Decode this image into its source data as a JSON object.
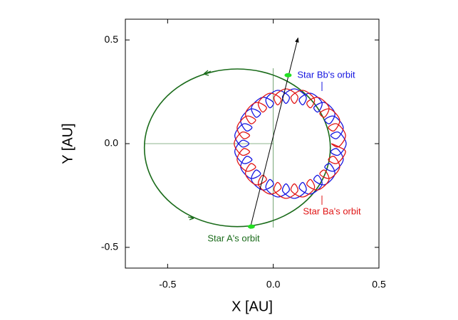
{
  "chart_data": {
    "type": "line",
    "x_label": "X [AU]",
    "y_label": "Y [AU]",
    "xlim": [
      -0.7,
      0.5
    ],
    "ylim": [
      -0.6,
      0.6
    ],
    "xticks": [
      -0.5,
      {
        "value": 0,
        "label": "0.0"
      },
      0.5
    ],
    "yticks": [
      -0.5,
      {
        "value": 0,
        "label": "0.0"
      },
      0.5
    ],
    "series": [
      {
        "name": "Star A's orbit",
        "color": "#1a6b1a",
        "x": [
          0.27,
          0.255,
          0.211,
          0.141,
          0.05,
          -0.056,
          -0.17,
          -0.284,
          -0.39,
          -0.481,
          -0.551,
          -0.595,
          -0.61,
          -0.595,
          -0.551,
          -0.481,
          -0.39,
          -0.284,
          -0.17,
          -0.056,
          0.05,
          0.141,
          0.211,
          0.255
        ],
        "y": [
          -0.02,
          0.078,
          0.17,
          0.249,
          0.309,
          0.347,
          0.36,
          0.347,
          0.309,
          0.249,
          0.17,
          0.078,
          -0.02,
          -0.118,
          -0.21,
          -0.289,
          -0.349,
          -0.387,
          -0.4,
          -0.387,
          -0.349,
          -0.289,
          -0.21,
          -0.118
        ]
      },
      {
        "name": "Star Bb's orbit",
        "color": "#1515e0",
        "x": [
          0.345,
          0.309,
          0.272,
          0.302,
          0.331,
          0.288,
          0.244,
          0.268,
          0.291,
          0.243,
          0.193,
          0.212,
          0.23,
          0.177,
          0.124,
          0.14,
          0.155,
          0.1,
          0.045,
          0.06,
          0.075,
          0.02,
          -0.034,
          -0.017,
          0.0,
          -0.052,
          -0.103,
          -0.083,
          -0.061,
          -0.108,
          -0.154,
          -0.128,
          -0.101,
          -0.142,
          -0.182,
          -0.149,
          -0.115,
          -0.149,
          -0.182,
          -0.142,
          -0.101,
          -0.128,
          -0.154,
          -0.108,
          -0.061,
          -0.083,
          -0.103,
          -0.052,
          0.0,
          -0.017,
          -0.034,
          0.02,
          0.075,
          0.06,
          0.045,
          0.1,
          0.155,
          0.14,
          0.124,
          0.177,
          0.23,
          0.212,
          0.193,
          0.243,
          0.291,
          0.268,
          0.244,
          0.288,
          0.331,
          0.302,
          0.272,
          0.309
        ],
        "y": [
          0,
          0.055,
          0.04,
          0.025,
          0.079,
          0.132,
          0.115,
          0.097,
          0.148,
          0.198,
          0.176,
          0.153,
          0.199,
          0.243,
          0.216,
          0.187,
          0.227,
          0.264,
          0.23,
          0.194,
          0.227,
          0.257,
          0.216,
          0.173,
          0.199,
          0.223,
          0.176,
          0.128,
          0.148,
          0.167,
          0.115,
          0.062,
          0.079,
          0.095,
          0.04,
          -0.015,
          0,
          0.015,
          -0.04,
          -0.095,
          -0.079,
          -0.062,
          -0.115,
          -0.167,
          -0.148,
          -0.128,
          -0.176,
          -0.223,
          -0.199,
          -0.173,
          -0.216,
          -0.257,
          -0.227,
          -0.194,
          -0.23,
          -0.264,
          -0.227,
          -0.187,
          -0.216,
          -0.243,
          -0.199,
          -0.153,
          -0.176,
          -0.198,
          -0.148,
          -0.097,
          -0.115,
          -0.132,
          -0.079,
          -0.025,
          -0.04,
          -0.055
        ]
      },
      {
        "name": "Star Ba's orbit",
        "color": "#e01515",
        "x": [
          0.275,
          0.309,
          0.342,
          0.302,
          0.261,
          0.288,
          0.314,
          0.268,
          0.221,
          0.243,
          0.263,
          0.212,
          0.16,
          0.177,
          0.194,
          0.14,
          0.085,
          0.1,
          0.115,
          0.06,
          0.005,
          0.02,
          0.036,
          -0.017,
          -0.07,
          -0.052,
          -0.033,
          -0.083,
          -0.131,
          -0.108,
          -0.084,
          -0.128,
          -0.171,
          -0.142,
          -0.112,
          -0.149,
          -0.185,
          -0.149,
          -0.112,
          -0.142,
          -0.171,
          -0.128,
          -0.084,
          -0.108,
          -0.131,
          -0.083,
          -0.033,
          -0.052,
          -0.07,
          -0.017,
          0.036,
          0.02,
          0.005,
          0.06,
          0.115,
          0.1,
          0.085,
          0.14,
          0.194,
          0.177,
          0.16,
          0.212,
          0.263,
          0.243,
          0.221,
          0.268,
          0.314,
          0.288,
          0.261,
          0.302,
          0.342,
          0.309
        ],
        "y": [
          0,
          -0.015,
          0.04,
          0.095,
          0.079,
          0.062,
          0.115,
          0.167,
          0.148,
          0.128,
          0.176,
          0.223,
          0.199,
          0.173,
          0.216,
          0.257,
          0.227,
          0.194,
          0.23,
          0.264,
          0.227,
          0.187,
          0.216,
          0.243,
          0.199,
          0.153,
          0.176,
          0.198,
          0.148,
          0.097,
          0.115,
          0.132,
          0.079,
          0.025,
          0.04,
          0.055,
          0,
          -0.055,
          -0.04,
          -0.025,
          -0.079,
          -0.132,
          -0.115,
          -0.097,
          -0.148,
          -0.198,
          -0.176,
          -0.153,
          -0.199,
          -0.243,
          -0.216,
          -0.187,
          -0.227,
          -0.264,
          -0.23,
          -0.194,
          -0.227,
          -0.257,
          -0.216,
          -0.173,
          -0.199,
          -0.223,
          -0.176,
          -0.128,
          -0.148,
          -0.167,
          -0.115,
          -0.062,
          -0.079,
          -0.095,
          -0.04,
          -0.015
        ]
      }
    ],
    "markers": {
      "color": "#22e022",
      "x": [
        0.07,
        -0.104
      ],
      "y": [
        0.33,
        -0.4
      ]
    },
    "arrow_line": {
      "color": "#000000",
      "x": [
        -0.11,
        0.117
      ],
      "y": [
        -0.41,
        0.51
      ]
    }
  }
}
